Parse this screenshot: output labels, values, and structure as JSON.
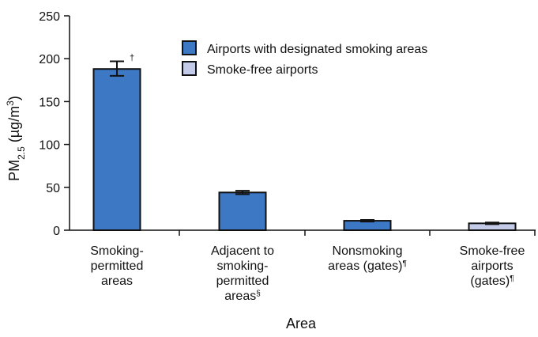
{
  "chart_data": {
    "type": "bar",
    "title": "",
    "xlabel": "Area",
    "ylabel": {
      "main": "PM",
      "sub": "2.5",
      "unit_pre": " (µg/m",
      "unit_sup": "3",
      "unit_post": ")"
    },
    "ylim": [
      0,
      250
    ],
    "yticks": [
      "0",
      "50",
      "100",
      "150",
      "200",
      "250"
    ],
    "grid": false,
    "legend_position": "top-right",
    "series": [
      {
        "name": "Airports with designated smoking areas",
        "color": "#3d78c4"
      },
      {
        "name": "Smoke-free airports",
        "color": "#c3cbe8"
      }
    ],
    "categories": [
      {
        "lines": [
          "Smoking-",
          "permitted",
          "areas"
        ],
        "mark": ""
      },
      {
        "lines": [
          "Adjacent to",
          "smoking-",
          "permitted",
          "areas"
        ],
        "mark": "§"
      },
      {
        "lines": [
          "Nonsmoking",
          "areas (gates)"
        ],
        "mark": "¶"
      },
      {
        "lines": [
          "Smoke-free",
          "airports",
          "(gates)"
        ],
        "mark": "¶"
      }
    ],
    "bars": [
      {
        "category_index": 0,
        "series_index": 0,
        "value": 188,
        "err_low": 180,
        "err_high": 197,
        "annotation": "†"
      },
      {
        "category_index": 1,
        "series_index": 0,
        "value": 44,
        "err_low": 42,
        "err_high": 46,
        "annotation": ""
      },
      {
        "category_index": 2,
        "series_index": 0,
        "value": 11,
        "err_low": 10,
        "err_high": 12,
        "annotation": ""
      },
      {
        "category_index": 3,
        "series_index": 1,
        "value": 8,
        "err_low": 7,
        "err_high": 9,
        "annotation": ""
      }
    ]
  }
}
